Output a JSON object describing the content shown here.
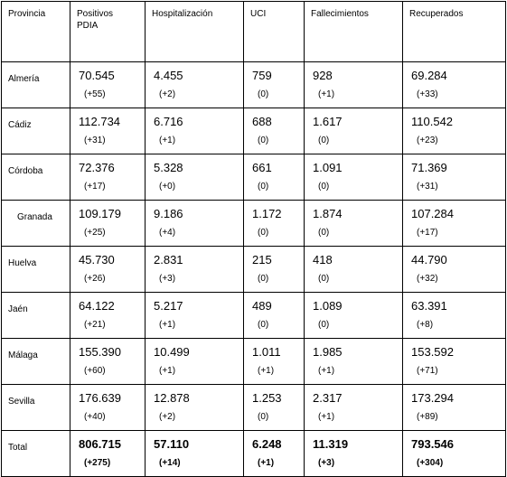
{
  "headers": [
    "Provincia",
    "Positivos\nPDIA",
    "Hospitalización",
    "UCI",
    "Fallecimientos",
    "Recuperados"
  ],
  "rows": [
    {
      "provincia": "Almería",
      "cells": [
        [
          "70.545",
          "(+55)"
        ],
        [
          "4.455",
          "(+2)"
        ],
        [
          "759",
          "(0)"
        ],
        [
          "928",
          "(+1)"
        ],
        [
          "69.284",
          "(+33)"
        ]
      ]
    },
    {
      "provincia": "Cádiz",
      "cells": [
        [
          "112.734",
          "(+31)"
        ],
        [
          "6.716",
          "(+1)"
        ],
        [
          "688",
          "(0)"
        ],
        [
          "1.617",
          "(0)"
        ],
        [
          "110.542",
          "(+23)"
        ]
      ]
    },
    {
      "provincia": "Córdoba",
      "cells": [
        [
          "72.376",
          "(+17)"
        ],
        [
          "5.328",
          "(+0)"
        ],
        [
          "661",
          "(0)"
        ],
        [
          "1.091",
          "(0)"
        ],
        [
          "71.369",
          "(+31)"
        ]
      ]
    },
    {
      "provincia": "Granada",
      "cells": [
        [
          "109.179",
          "(+25)"
        ],
        [
          "9.186",
          "(+4)"
        ],
        [
          "1.172",
          "(0)"
        ],
        [
          "1.874",
          "(0)"
        ],
        [
          "107.284",
          "(+17)"
        ]
      ]
    },
    {
      "provincia": "Huelva",
      "cells": [
        [
          "45.730",
          "(+26)"
        ],
        [
          "2.831",
          "(+3)"
        ],
        [
          "215",
          "(0)"
        ],
        [
          "418",
          "(0)"
        ],
        [
          "44.790",
          "(+32)"
        ]
      ]
    },
    {
      "provincia": "Jaén",
      "cells": [
        [
          "64.122",
          "(+21)"
        ],
        [
          "5.217",
          "(+1)"
        ],
        [
          "489",
          "(0)"
        ],
        [
          "1.089",
          "(0)"
        ],
        [
          "63.391",
          "(+8)"
        ]
      ]
    },
    {
      "provincia": "Málaga",
      "cells": [
        [
          "155.390",
          "(+60)"
        ],
        [
          "10.499",
          "(+1)"
        ],
        [
          "1.011",
          "(+1)"
        ],
        [
          "1.985",
          "(+1)"
        ],
        [
          "153.592",
          "(+71)"
        ]
      ]
    },
    {
      "provincia": "Sevilla",
      "cells": [
        [
          "176.639",
          "(+40)"
        ],
        [
          "12.878",
          "(+2)"
        ],
        [
          "1.253",
          "(0)"
        ],
        [
          "2.317",
          "(+1)"
        ],
        [
          "173.294",
          "(+89)"
        ]
      ]
    }
  ],
  "total": {
    "provincia": "Total",
    "cells": [
      [
        "806.715",
        "(+275)"
      ],
      [
        "57.110",
        "(+14)"
      ],
      [
        "6.248",
        "(+1)"
      ],
      [
        "11.319",
        "(+3)"
      ],
      [
        "793.546",
        "(+304)"
      ]
    ]
  }
}
